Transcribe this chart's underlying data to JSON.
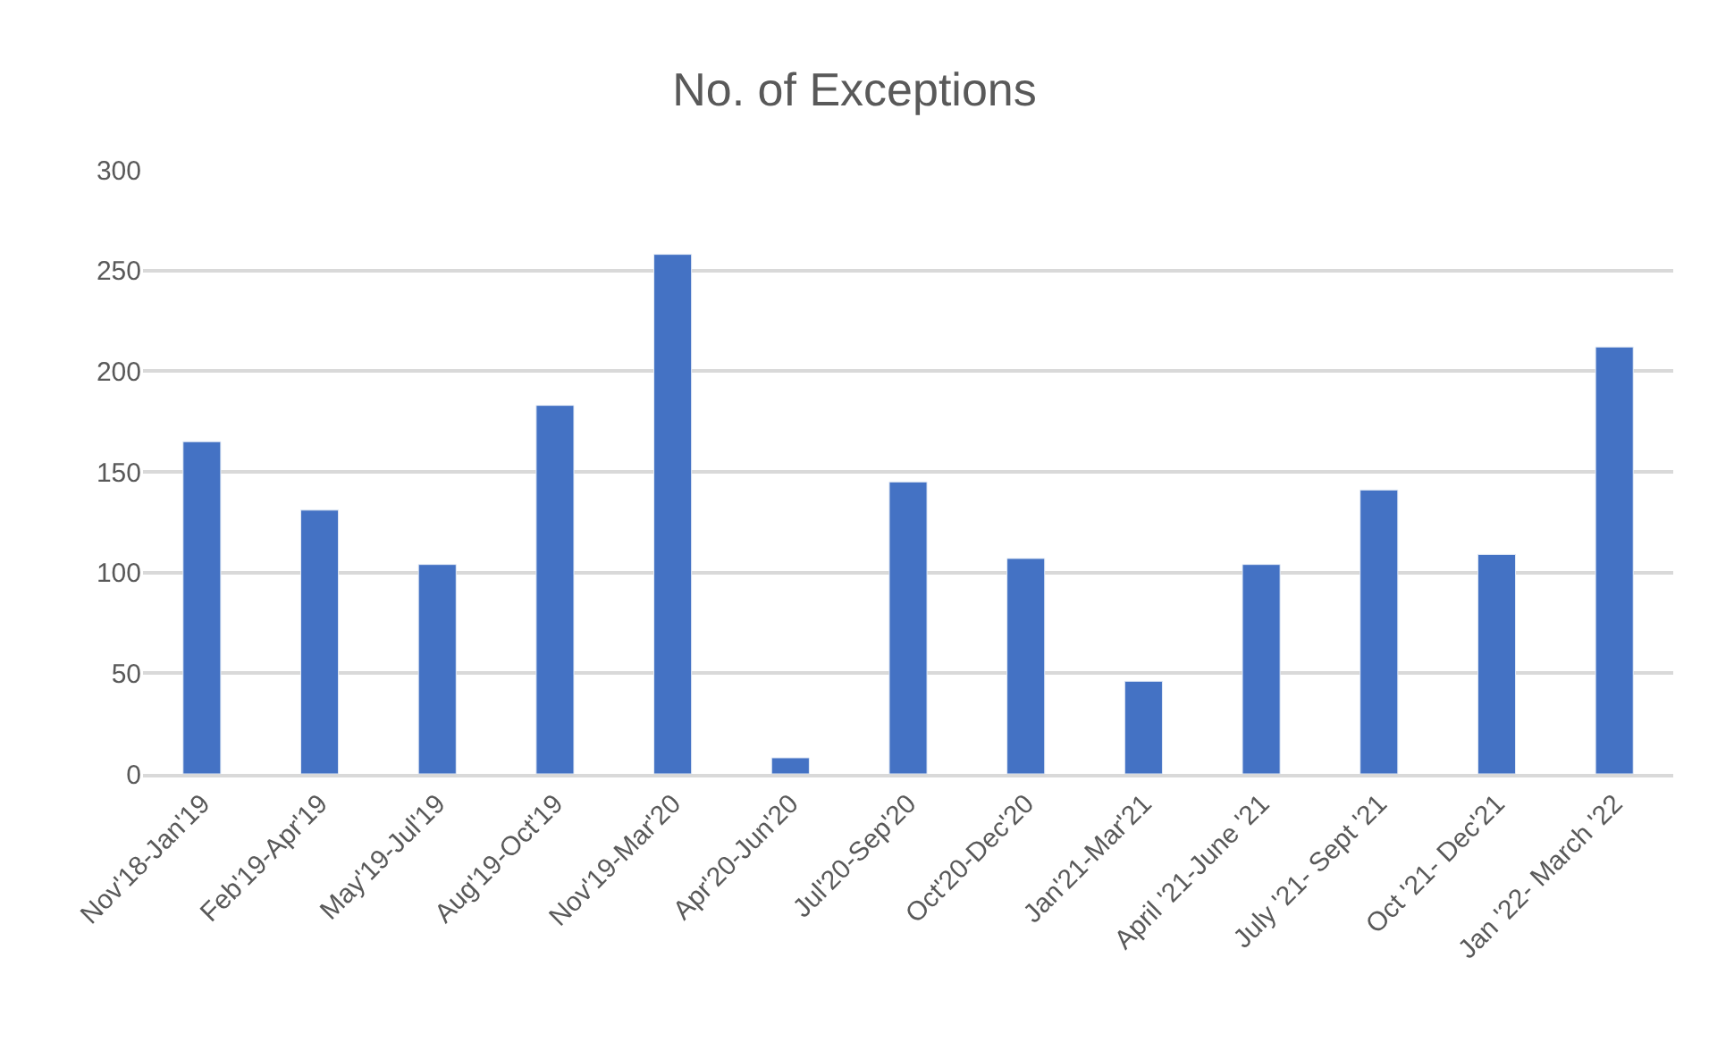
{
  "chart_data": {
    "type": "bar",
    "title": "No. of Exceptions",
    "categories": [
      "Nov'18-Jan'19",
      "Feb'19-Apr'19",
      "May'19-Jul'19",
      "Aug'19-Oct'19",
      "Nov'19-Mar'20",
      "Apr'20-Jun'20",
      "Jul'20-Sep'20",
      "Oct'20-Dec'20",
      "Jan'21-Mar'21",
      "April '21-June '21",
      "July '21- Sept '21",
      "Oct '21- Dec'21",
      "Jan '22- March '22"
    ],
    "values": [
      165,
      131,
      104,
      183,
      258,
      8,
      145,
      107,
      46,
      104,
      141,
      109,
      212
    ],
    "color": "#4472c4",
    "ylim": [
      0,
      300
    ],
    "yticks": [
      0,
      50,
      100,
      150,
      200,
      250,
      300
    ],
    "grid": "y",
    "legend": false
  }
}
